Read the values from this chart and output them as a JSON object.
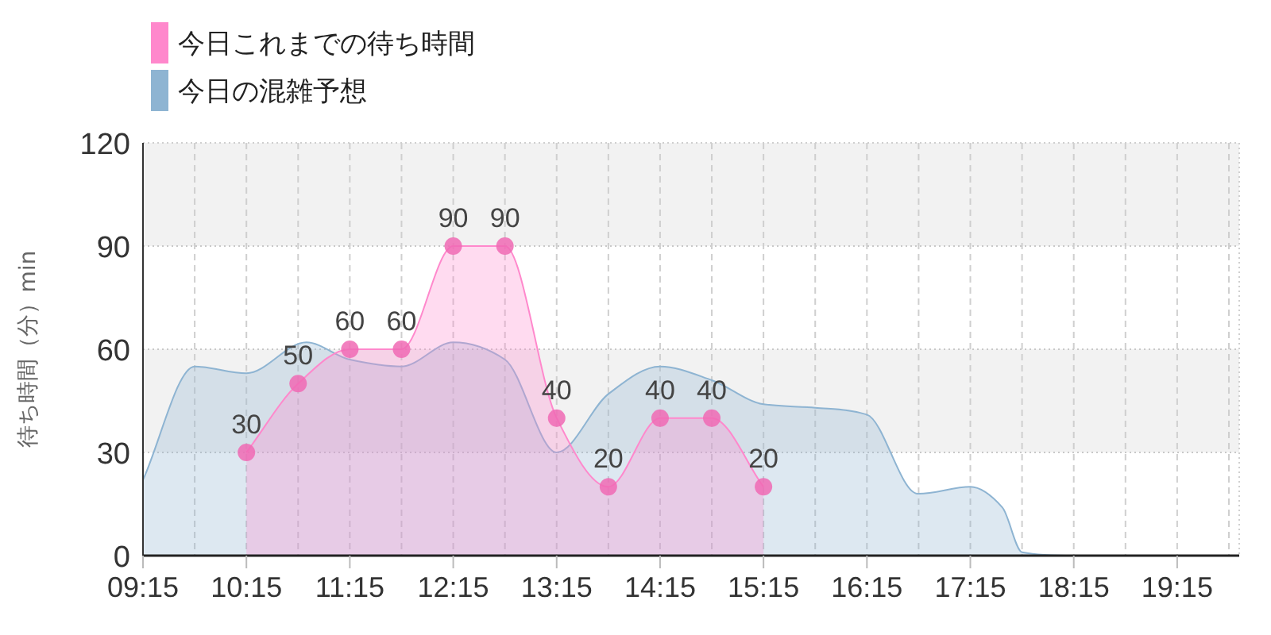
{
  "chart_data": {
    "type": "area",
    "ylabel": "待ち時間（分）min",
    "xlim": [
      9.25,
      19.85
    ],
    "ylim": [
      0,
      120
    ],
    "yticks": [
      0,
      30,
      60,
      90,
      120
    ],
    "xticks": [
      {
        "value": 9.25,
        "label": "09:15"
      },
      {
        "value": 9.75,
        "label": null
      },
      {
        "value": 10.25,
        "label": "10:15"
      },
      {
        "value": 10.75,
        "label": null
      },
      {
        "value": 11.25,
        "label": "11:15"
      },
      {
        "value": 11.75,
        "label": null
      },
      {
        "value": 12.25,
        "label": "12:15"
      },
      {
        "value": 12.75,
        "label": null
      },
      {
        "value": 13.25,
        "label": "13:15"
      },
      {
        "value": 13.75,
        "label": null
      },
      {
        "value": 14.25,
        "label": "14:15"
      },
      {
        "value": 14.75,
        "label": null
      },
      {
        "value": 15.25,
        "label": "15:15"
      },
      {
        "value": 15.75,
        "label": null
      },
      {
        "value": 16.25,
        "label": "16:15"
      },
      {
        "value": 16.75,
        "label": null
      },
      {
        "value": 17.25,
        "label": "17:15"
      },
      {
        "value": 17.75,
        "label": null
      },
      {
        "value": 18.25,
        "label": "18:15"
      },
      {
        "value": 18.75,
        "label": null
      },
      {
        "value": 19.25,
        "label": "19:15"
      },
      {
        "value": 19.75,
        "label": null
      }
    ],
    "grid": true,
    "legend": "top left",
    "bands": [
      {
        "axis": "y",
        "from": 30,
        "to": 60,
        "color": "#f2f2f2"
      },
      {
        "axis": "y",
        "from": 90,
        "to": 120,
        "color": "#f2f2f2"
      }
    ],
    "series": [
      {
        "name": "今日の混雑予想",
        "color": "#8eb4d2",
        "marker": "none",
        "x": [
          9.25,
          9.75,
          10.25,
          10.83,
          11.25,
          11.75,
          12.25,
          12.75,
          13.25,
          13.75,
          14.25,
          14.75,
          15.25,
          15.75,
          16.25,
          16.74,
          16.75,
          17.25,
          17.56,
          17.75,
          18.25,
          18.75,
          19.25,
          19.85
        ],
        "values": [
          22,
          55,
          53,
          62,
          57,
          55,
          62,
          57,
          30,
          47,
          55,
          51,
          44,
          43,
          41,
          18,
          18,
          20,
          14,
          1,
          0,
          0,
          0,
          0
        ]
      },
      {
        "name": "今日これまでの待ち時間",
        "color": "#ff88cc",
        "marker": "circle",
        "data_labels": true,
        "x": [
          10.25,
          10.75,
          11.25,
          11.75,
          12.25,
          12.75,
          13.25,
          13.75,
          14.25,
          14.75,
          15.25
        ],
        "values": [
          30,
          50,
          60,
          60,
          90,
          90,
          40,
          20,
          40,
          40,
          20
        ]
      }
    ]
  }
}
